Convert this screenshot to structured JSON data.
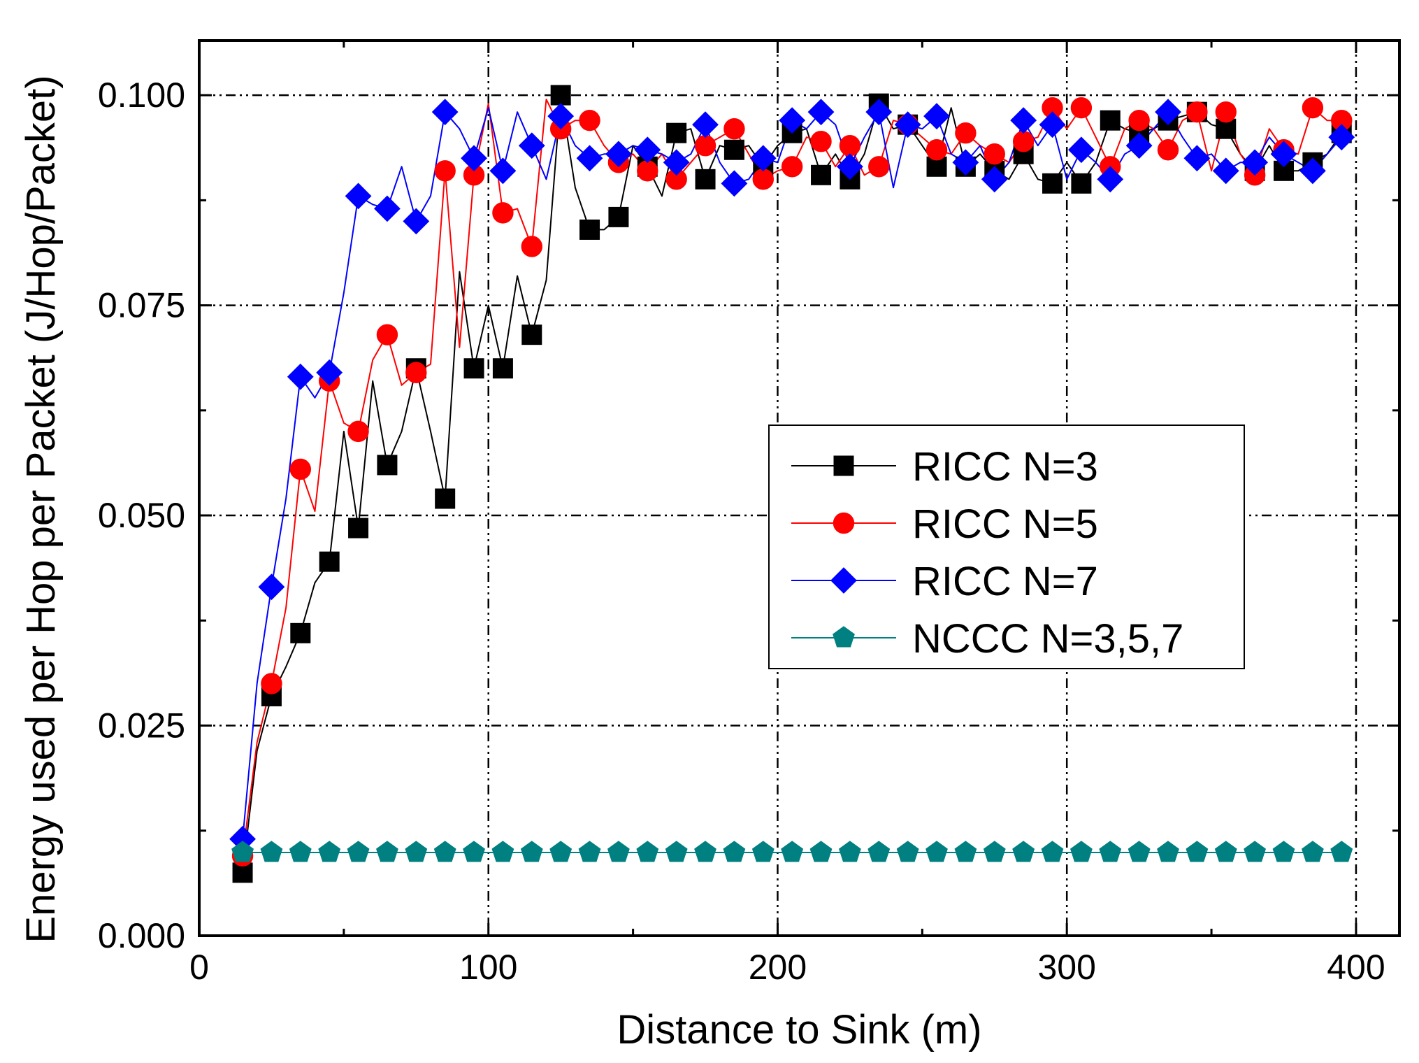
{
  "chart_data": {
    "type": "line",
    "xlabel": "Distance to Sink (m)",
    "ylabel": "Energy used per Hop per Packet (J/Hop/Packet)",
    "xlim": [
      0,
      415
    ],
    "ylim": [
      0,
      0.1065
    ],
    "x_ticks": [
      0,
      100,
      200,
      300,
      400
    ],
    "x_tick_labels": [
      "0",
      "100",
      "200",
      "300",
      "400"
    ],
    "y_ticks": [
      0,
      0.025,
      0.05,
      0.075,
      0.1
    ],
    "y_tick_labels": [
      "0.000",
      "0.025",
      "0.050",
      "0.075",
      "0.100"
    ],
    "grid": true,
    "legend_position": "center-right",
    "series": [
      {
        "name": "RICC N=3",
        "color": "#000000",
        "marker": "square",
        "x": [
          15,
          20,
          25,
          30,
          35,
          40,
          45,
          50,
          55,
          60,
          65,
          70,
          75,
          80,
          85,
          90,
          95,
          100,
          105,
          110,
          115,
          120,
          125,
          130,
          135,
          140,
          145,
          150,
          155,
          160,
          165,
          170,
          175,
          180,
          185,
          190,
          195,
          200,
          205,
          210,
          215,
          220,
          225,
          230,
          235,
          240,
          245,
          250,
          255,
          260,
          265,
          270,
          275,
          280,
          285,
          290,
          295,
          300,
          305,
          310,
          315,
          320,
          325,
          330,
          335,
          340,
          345,
          350,
          355,
          360,
          365,
          370,
          375,
          380,
          385,
          390,
          395
        ],
        "y": [
          0.0075,
          0.022,
          0.0285,
          0.032,
          0.036,
          0.042,
          0.0445,
          0.06,
          0.0485,
          0.066,
          0.056,
          0.06,
          0.0675,
          0.06,
          0.052,
          0.079,
          0.0675,
          0.075,
          0.0675,
          0.0785,
          0.0715,
          0.078,
          0.1,
          0.089,
          0.084,
          0.084,
          0.0855,
          0.094,
          0.0915,
          0.088,
          0.0955,
          0.096,
          0.09,
          0.094,
          0.0935,
          0.094,
          0.0915,
          0.094,
          0.0955,
          0.096,
          0.0905,
          0.093,
          0.09,
          0.093,
          0.099,
          0.096,
          0.0965,
          0.094,
          0.0915,
          0.0985,
          0.0915,
          0.093,
          0.091,
          0.09,
          0.093,
          0.09,
          0.0895,
          0.092,
          0.0895,
          0.092,
          0.097,
          0.096,
          0.0955,
          0.096,
          0.097,
          0.0975,
          0.098,
          0.0965,
          0.096,
          0.093,
          0.091,
          0.094,
          0.091,
          0.091,
          0.092,
          0.093,
          0.0955
        ]
      },
      {
        "name": "RICC N=5",
        "color": "#ff0000",
        "marker": "circle",
        "x": [
          15,
          20,
          25,
          30,
          35,
          40,
          45,
          50,
          55,
          60,
          65,
          70,
          75,
          80,
          85,
          90,
          95,
          100,
          105,
          110,
          115,
          120,
          125,
          130,
          135,
          140,
          145,
          150,
          155,
          160,
          165,
          170,
          175,
          180,
          185,
          190,
          195,
          200,
          205,
          210,
          215,
          220,
          225,
          230,
          235,
          240,
          245,
          250,
          255,
          260,
          265,
          270,
          275,
          280,
          285,
          290,
          295,
          300,
          305,
          310,
          315,
          320,
          325,
          330,
          335,
          340,
          345,
          350,
          355,
          360,
          365,
          370,
          375,
          380,
          385,
          390,
          395
        ],
        "y": [
          0.0095,
          0.023,
          0.03,
          0.039,
          0.0555,
          0.0505,
          0.066,
          0.061,
          0.06,
          0.0685,
          0.0715,
          0.0655,
          0.067,
          0.068,
          0.091,
          0.07,
          0.0905,
          0.099,
          0.086,
          0.0865,
          0.082,
          0.0995,
          0.096,
          0.097,
          0.097,
          0.094,
          0.092,
          0.093,
          0.091,
          0.093,
          0.09,
          0.092,
          0.094,
          0.095,
          0.096,
          0.093,
          0.09,
          0.091,
          0.0915,
          0.095,
          0.0945,
          0.0915,
          0.094,
          0.0905,
          0.0915,
          0.097,
          0.0965,
          0.095,
          0.0935,
          0.093,
          0.0955,
          0.094,
          0.093,
          0.092,
          0.0945,
          0.095,
          0.0985,
          0.096,
          0.0985,
          0.095,
          0.0915,
          0.096,
          0.097,
          0.096,
          0.0935,
          0.097,
          0.098,
          0.091,
          0.098,
          0.093,
          0.0905,
          0.096,
          0.0935,
          0.093,
          0.0985,
          0.097,
          0.097
        ]
      },
      {
        "name": "RICC N=7",
        "color": "#0000ff",
        "marker": "diamond",
        "x": [
          15,
          20,
          25,
          30,
          35,
          40,
          45,
          50,
          55,
          60,
          65,
          70,
          75,
          80,
          85,
          90,
          95,
          100,
          105,
          110,
          115,
          120,
          125,
          130,
          135,
          140,
          145,
          150,
          155,
          160,
          165,
          170,
          175,
          180,
          185,
          190,
          195,
          200,
          205,
          210,
          215,
          220,
          225,
          230,
          235,
          240,
          245,
          250,
          255,
          260,
          265,
          270,
          275,
          280,
          285,
          290,
          295,
          300,
          305,
          310,
          315,
          320,
          325,
          330,
          335,
          340,
          345,
          350,
          355,
          360,
          365,
          370,
          375,
          380,
          385,
          390,
          395
        ],
        "y": [
          0.0115,
          0.03,
          0.0415,
          0.052,
          0.0665,
          0.064,
          0.067,
          0.0765,
          0.088,
          0.087,
          0.0865,
          0.0915,
          0.085,
          0.088,
          0.098,
          0.096,
          0.0925,
          0.0985,
          0.091,
          0.098,
          0.094,
          0.09,
          0.0975,
          0.094,
          0.0925,
          0.093,
          0.093,
          0.094,
          0.0935,
          0.093,
          0.092,
          0.093,
          0.0965,
          0.092,
          0.0895,
          0.09,
          0.0925,
          0.092,
          0.097,
          0.096,
          0.098,
          0.0965,
          0.0915,
          0.095,
          0.098,
          0.089,
          0.0965,
          0.096,
          0.0975,
          0.093,
          0.092,
          0.094,
          0.09,
          0.092,
          0.097,
          0.094,
          0.0965,
          0.09,
          0.0935,
          0.092,
          0.09,
          0.093,
          0.094,
          0.096,
          0.098,
          0.095,
          0.0925,
          0.093,
          0.091,
          0.092,
          0.092,
          0.095,
          0.093,
          0.092,
          0.091,
          0.093,
          0.095
        ]
      },
      {
        "name": "NCCC N=3,5,7",
        "color": "#008080",
        "marker": "pentagon",
        "x": [
          15,
          25,
          35,
          45,
          55,
          65,
          75,
          85,
          95,
          105,
          115,
          125,
          135,
          145,
          155,
          165,
          175,
          185,
          195,
          205,
          215,
          225,
          235,
          245,
          255,
          265,
          275,
          285,
          295,
          305,
          315,
          325,
          335,
          345,
          355,
          365,
          375,
          385,
          395
        ],
        "y": [
          0.0099,
          0.0099,
          0.0099,
          0.0099,
          0.0099,
          0.0099,
          0.0099,
          0.0099,
          0.0099,
          0.0099,
          0.0099,
          0.0099,
          0.0099,
          0.0099,
          0.0099,
          0.0099,
          0.0099,
          0.0099,
          0.0099,
          0.0099,
          0.0099,
          0.0099,
          0.0099,
          0.0099,
          0.0099,
          0.0099,
          0.0099,
          0.0099,
          0.0099,
          0.0099,
          0.0099,
          0.0099,
          0.0099,
          0.0099,
          0.0099,
          0.0099,
          0.0099,
          0.0099,
          0.0099
        ]
      }
    ]
  }
}
